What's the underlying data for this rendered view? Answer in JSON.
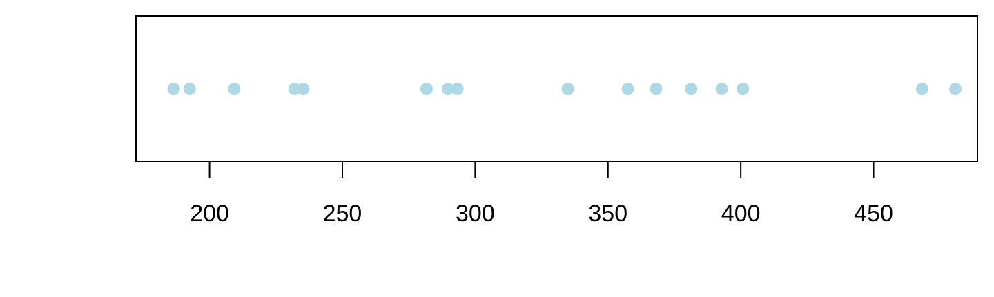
{
  "chart_data": {
    "type": "scatter",
    "title": "",
    "xlabel": "",
    "ylabel": "",
    "xlim": [
      172.3,
      489.1
    ],
    "x_ticks": [
      200,
      250,
      300,
      350,
      400,
      450
    ],
    "x_tick_labels": [
      "200",
      "250",
      "300",
      "350",
      "400",
      "450"
    ],
    "x": [
      186.5,
      192.5,
      209.3,
      232.0,
      235.3,
      281.7,
      289.8,
      293.3,
      334.9,
      357.5,
      368.1,
      381.3,
      392.8,
      400.8,
      468.3,
      480.8
    ],
    "y": [
      1,
      1,
      1,
      1,
      1,
      1,
      1,
      1,
      1,
      1,
      1,
      1,
      1,
      1,
      1,
      1
    ],
    "point_color": "#ADD8E6",
    "grid": false,
    "legend": "none"
  }
}
